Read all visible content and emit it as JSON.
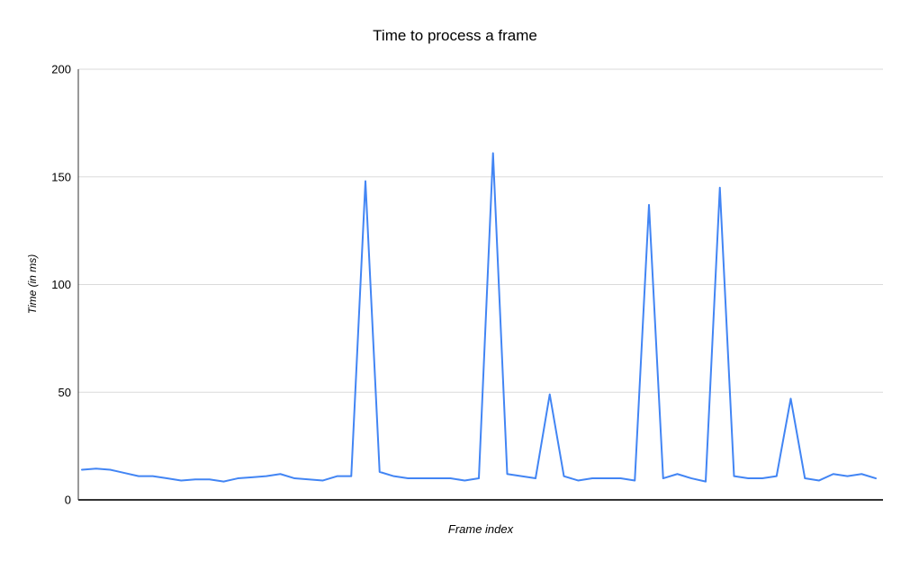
{
  "page": {
    "background": "#ffffff"
  },
  "chart_data": {
    "type": "line",
    "title": "Time to process a frame",
    "xlabel": "Frame index",
    "ylabel": "Time (in ms)",
    "ylim": [
      0,
      200
    ],
    "yticks": [
      0,
      50,
      100,
      150,
      200
    ],
    "grid": true,
    "legend_position": "none",
    "x_tick_labels": [],
    "values": [
      14,
      14.5,
      14,
      12.5,
      11,
      11,
      10,
      9,
      9.5,
      9.5,
      8.5,
      10,
      10.5,
      11,
      12,
      10,
      9.5,
      9,
      11,
      11,
      148,
      13,
      11,
      10,
      10,
      10,
      10,
      9,
      10,
      161,
      12,
      11,
      10,
      49,
      11,
      9,
      10,
      10,
      10,
      9,
      137,
      10,
      12,
      10,
      8.5,
      145,
      11,
      10,
      10,
      11,
      47,
      10,
      9,
      12,
      11,
      12,
      10
    ],
    "num_points": 57
  },
  "colors": {
    "line": "#4285f4",
    "gridline": "#dadada",
    "axis": "#333333",
    "text": "#000000"
  }
}
